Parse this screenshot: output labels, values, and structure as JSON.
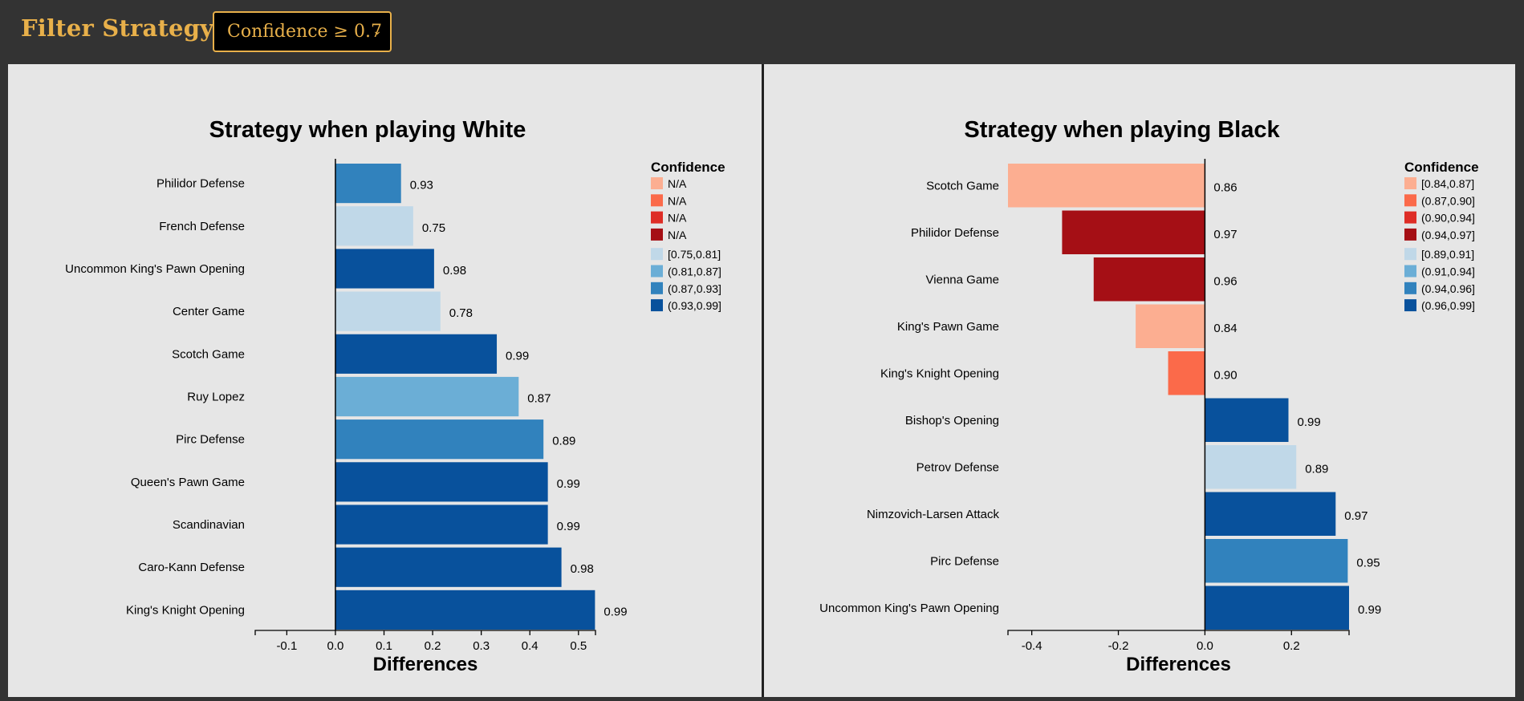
{
  "filter": {
    "label": "Filter Strategy:",
    "selected": "Confidence ≥ 0.7"
  },
  "chart_data": [
    {
      "type": "bar",
      "orientation": "horizontal",
      "title": "Strategy when playing White",
      "xlabel": "Differences",
      "xlim": [
        -0.165,
        0.535
      ],
      "xticks": [
        -0.1,
        0.0,
        0.1,
        0.2,
        0.3,
        0.4,
        0.5
      ],
      "xtick_labels": [
        "-0.1",
        "0.0",
        "0.1",
        "0.2",
        "0.3",
        "0.4",
        "0.5"
      ],
      "categories": [
        "Philidor Defense",
        "French Defense",
        "Uncommon King's Pawn Opening",
        "Center Game",
        "Scotch Game",
        "Ruy Lopez",
        "Pirc Defense",
        "Queen's Pawn Game",
        "Scandinavian",
        "Caro-Kann Defense",
        "King's Knight Opening"
      ],
      "values": [
        0.135,
        0.16,
        0.203,
        0.216,
        0.332,
        0.377,
        0.428,
        0.437,
        0.437,
        0.465,
        0.534
      ],
      "value_labels": [
        "0.93",
        "0.75",
        "0.98",
        "0.78",
        "0.99",
        "0.87",
        "0.89",
        "0.99",
        "0.99",
        "0.98",
        "0.99"
      ],
      "colors": [
        "#3182bd",
        "#c0d8e8",
        "#08519c",
        "#c0d8e8",
        "#08519c",
        "#6baed6",
        "#3182bd",
        "#08519c",
        "#08519c",
        "#08519c",
        "#08519c"
      ],
      "legend": {
        "title": "Confidence",
        "position": "top-right",
        "items": [
          {
            "label": "N/A",
            "color": "#fcae91"
          },
          {
            "label": "N/A",
            "color": "#fb6a4a"
          },
          {
            "label": "N/A",
            "color": "#de2d26"
          },
          {
            "label": "N/A",
            "color": "#a50f15"
          },
          {
            "label": "[0.75,0.81]",
            "color": "#c0d8e8"
          },
          {
            "label": "(0.81,0.87]",
            "color": "#6baed6"
          },
          {
            "label": "(0.87,0.93]",
            "color": "#3182bd"
          },
          {
            "label": "(0.93,0.99]",
            "color": "#08519c"
          }
        ]
      }
    },
    {
      "type": "bar",
      "orientation": "horizontal",
      "title": "Strategy when playing Black",
      "xlabel": "Differences",
      "xlim": [
        -0.455,
        0.333
      ],
      "xticks": [
        -0.4,
        -0.2,
        0.0,
        0.2
      ],
      "xtick_labels": [
        "-0.4",
        "-0.2",
        "0.0",
        "0.2"
      ],
      "categories": [
        "Scotch Game",
        "Philidor Defense",
        "Vienna Game",
        "King's Pawn Game",
        "King's Knight Opening",
        "Bishop's Opening",
        "Petrov Defense",
        "Nimzovich-Larsen Attack",
        "Pirc Defense",
        "Uncommon King's Pawn Opening"
      ],
      "values": [
        -0.455,
        -0.33,
        -0.257,
        -0.16,
        -0.085,
        0.193,
        0.211,
        0.302,
        0.33,
        0.333
      ],
      "value_labels": [
        "0.86",
        "0.97",
        "0.96",
        "0.84",
        "0.90",
        "0.99",
        "0.89",
        "0.97",
        "0.95",
        "0.99"
      ],
      "colors": [
        "#fcae91",
        "#a50f15",
        "#a50f15",
        "#fcae91",
        "#fb6a4a",
        "#08519c",
        "#c0d8e8",
        "#08519c",
        "#3182bd",
        "#08519c"
      ],
      "legend": {
        "title": "Confidence",
        "position": "top-right",
        "items": [
          {
            "label": "[0.84,0.87]",
            "color": "#fcae91"
          },
          {
            "label": "(0.87,0.90]",
            "color": "#fb6a4a"
          },
          {
            "label": "(0.90,0.94]",
            "color": "#de2d26"
          },
          {
            "label": "(0.94,0.97]",
            "color": "#a50f15"
          },
          {
            "label": "[0.89,0.91]",
            "color": "#c0d8e8"
          },
          {
            "label": "(0.91,0.94]",
            "color": "#6baed6"
          },
          {
            "label": "(0.94,0.96]",
            "color": "#3182bd"
          },
          {
            "label": "(0.96,0.99]",
            "color": "#08519c"
          }
        ]
      }
    }
  ]
}
